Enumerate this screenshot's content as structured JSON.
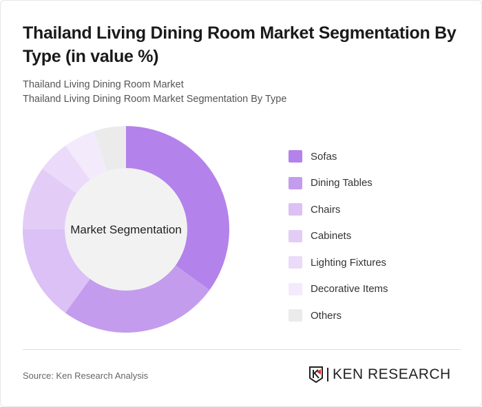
{
  "title": "Thailand Living Dining Room Market Segmentation By Type (in value %)",
  "subtitle1": "Thailand Living Dining Room Market",
  "subtitle2": "Thailand Living Dining Room Market Segmentation By Type",
  "source": "Source: Ken Research Analysis",
  "logo_text": "KEN RESEARCH",
  "chart_data": {
    "type": "pie",
    "variant": "donut",
    "center_label": "Market Segmentation",
    "legend_position": "right",
    "categories": [
      "Sofas",
      "Dining Tables",
      "Chairs",
      "Cabinets",
      "Lighting Fixtures",
      "Decorative Items",
      "Others"
    ],
    "values": [
      35,
      25,
      15,
      10,
      5,
      5,
      5
    ],
    "colors": [
      "#b482eb",
      "#c49cee",
      "#dbc1f5",
      "#e3cdf7",
      "#ebdaf9",
      "#f3eafc",
      "#ebebeb"
    ]
  }
}
